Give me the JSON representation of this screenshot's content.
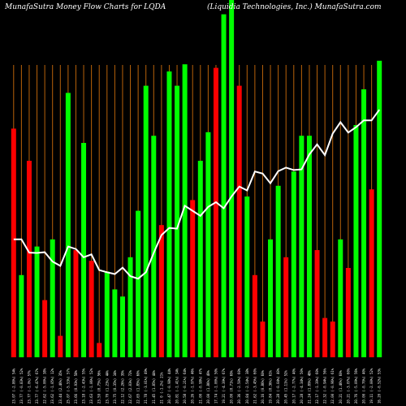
{
  "header": {
    "left": "MunafaSutra  Money Flow  Charts for LQDA",
    "right": "(Liquidia  Technologies,  Inc.) MunafaSutra.com"
  },
  "chart_data": {
    "type": "bar",
    "title": "MunafaSutra  Money Flow  Charts for LQDA",
    "subtitle": "(Liquidia  Technologies,  Inc.) MunafaSutra.com",
    "background": "#000000",
    "grid": "vertical, orange",
    "colors": {
      "up": "#00ff00",
      "down": "#ff0000",
      "grid": "#b8620a",
      "line": "#ffffff"
    },
    "ylim": [
      0,
      100
    ],
    "categories": [
      "23.07 (-2.80%) 54%",
      "23.77 (-0.83%) 52%",
      "23.77 (-1.0%) 57%",
      "23.77 (-6.47%) 67%",
      "22.62 (-5.00%) 38%",
      "23.62 (-1.05%) 12%",
      "23.44 (2.46%) 35%",
      "25.07 (-5.53%) 57%",
      "23.66 (0.93%) 58%",
      "23.18 (-2.43%) 55%",
      "23.63 (-1.06%) 52%",
      "23.59 (0.75%) 56%",
      "23.70 (1.23%) 44%",
      "23.75 (0.35%) 34%",
      "22.12 (2.26%) 39%",
      "22.67 (2.03%) 72%",
      "22.65 (1.85%) 60%",
      "21.78 (-3.01%) 49%",
      "21.45 (1.85%) 44%",
      "21  0 (-1.2%) 21%",
      "20.47 (-0.98%) 44%",
      "20.81 (-1.41%) 34%",
      "20.58 (-0.21%) 64%",
      "20.26 (-1.97%) 46%",
      "21.00 (-0.98%) 47%",
      "20.00 (1.86%) 49%",
      "17.74 (-1.00%) 50%",
      "19.21 (-4.39%) 67%",
      "20.00 (0.71%) 69%",
      "20.36 (-2.50%) 60%",
      "20.84 (-2.54%) 38%",
      "21.62 (-3.45%) 60%",
      "20.16 (0.86%) 60%",
      "19.84 (0.36%) 61%",
      "20.28 (-0.04%) 40%",
      "20.45 (1.11%) 52%",
      "20.17 (-2.77%) 40%",
      "20.28 (-4.34%) 50%",
      "21.24 (1.89%) 48%",
      "22.17 (-1.39%) 60%",
      "22.32 (-0.94%) 56%",
      "22.00 (-0.96%) 61%",
      "20.21 (1.46%) 60%",
      "20.21 (-3.07%) 60%",
      "20.76 (-5.09%) 56%",
      "20.00 (-0.70%) 40%",
      "19.11 (-2.00%) 52%",
      "16.20 (-0.52%) 53%"
    ],
    "series": [
      {
        "values": [
          64,
          23,
          55,
          31,
          16,
          33,
          6,
          74,
          30,
          60,
          27,
          4,
          24,
          19,
          17,
          28,
          41,
          76,
          62,
          37,
          80,
          76,
          82,
          44,
          55,
          63,
          81,
          96,
          100,
          76,
          45,
          23,
          10,
          33,
          48,
          28,
          52,
          62,
          62,
          30,
          11,
          10,
          33,
          25,
          65,
          75,
          47,
          83
        ],
        "directions": [
          "down",
          "up",
          "down",
          "up",
          "down",
          "up",
          "down",
          "up",
          "down",
          "up",
          "down",
          "down",
          "up",
          "up",
          "up",
          "up",
          "up",
          "up",
          "up",
          "down",
          "up",
          "up",
          "up",
          "down",
          "up",
          "up",
          "down",
          "up",
          "up",
          "down",
          "up",
          "down",
          "down",
          "up",
          "up",
          "down",
          "up",
          "up",
          "up",
          "down",
          "down",
          "down",
          "up",
          "down",
          "up",
          "up",
          "down",
          "up"
        ]
      }
    ],
    "line": [
      33.0,
      33.0,
      29.3,
      29.2,
      29.4,
      26.8,
      25.6,
      31.0,
      30.3,
      28.0,
      28.8,
      24.4,
      23.8,
      23.3,
      25.1,
      22.7,
      22.0,
      23.8,
      29.2,
      34.2,
      36.2,
      36.0,
      42.4,
      41.0,
      39.6,
      42.1,
      43.4,
      41.7,
      45.0,
      47.8,
      46.7,
      52.0,
      51.4,
      48.7,
      52.1,
      53.1,
      52.4,
      52.6,
      56.8,
      59.6,
      56.6,
      62.6,
      65.8,
      62.9,
      64.4,
      66.3,
      66.3,
      69.3
    ]
  }
}
